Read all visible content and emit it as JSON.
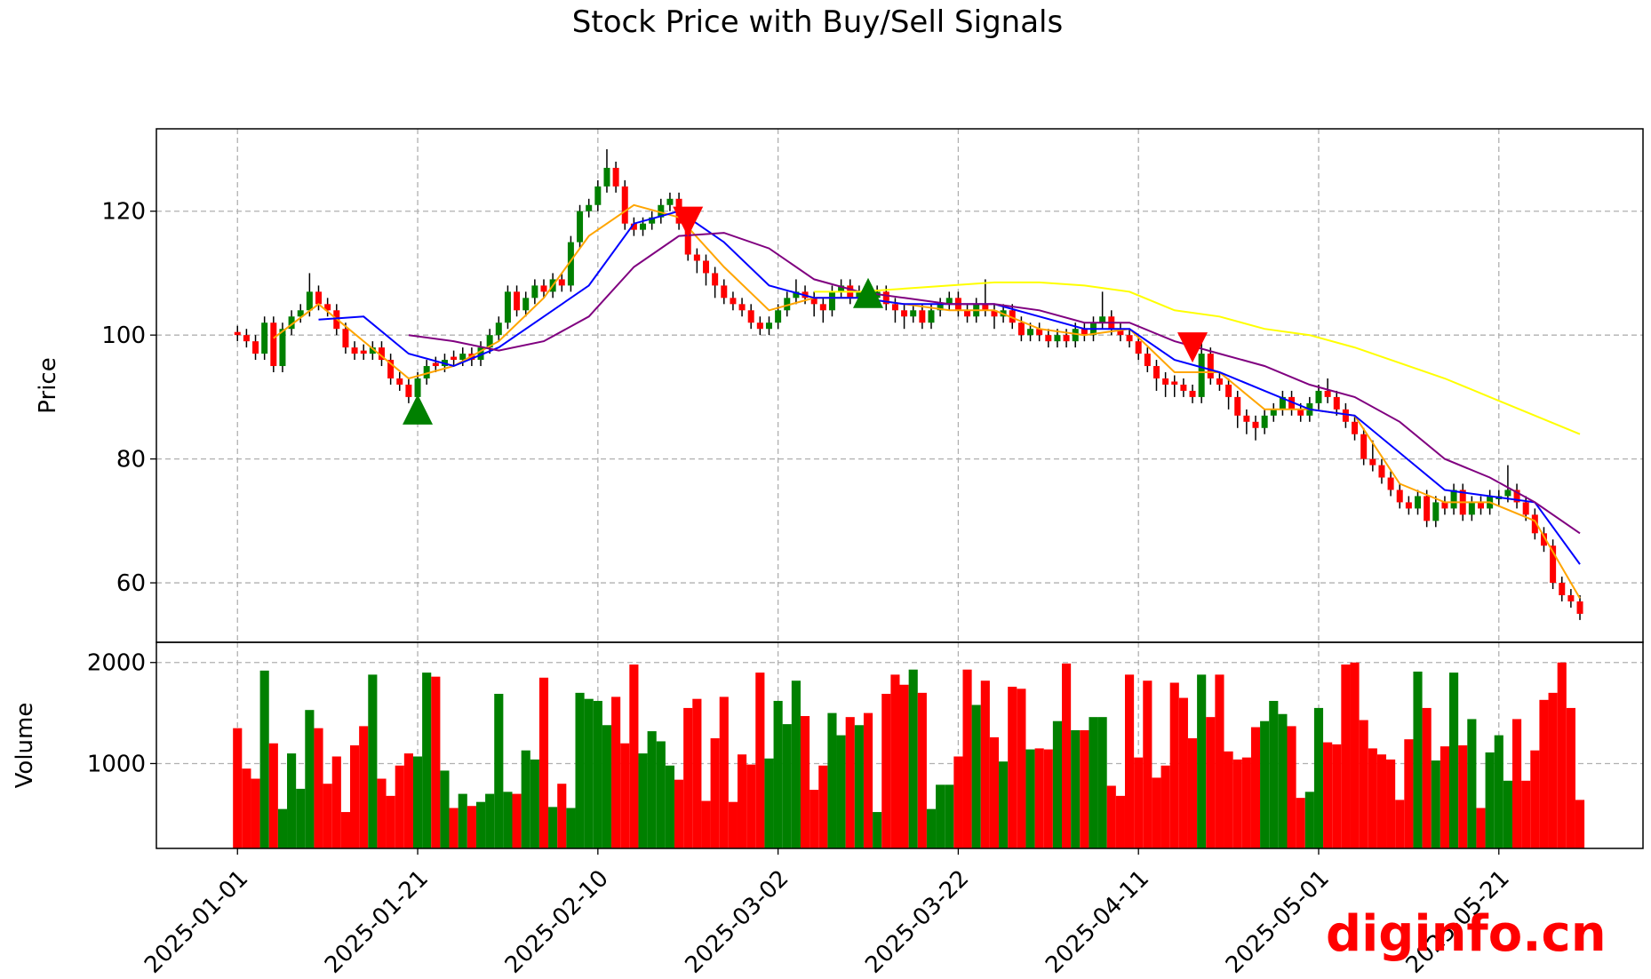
{
  "title": "Stock Price with Buy/Sell Signals",
  "watermark": "diginfo.cn",
  "chart_data": {
    "type": "candlestick",
    "ylabel": "Price",
    "volume_ylabel": "Volume",
    "up_color": "green",
    "down_color": "red",
    "grid": true,
    "xlim": [
      "2024-12-23",
      "2025-06-06"
    ],
    "ylim": [
      50.4,
      133.3
    ],
    "yticks": [
      60,
      80,
      100,
      120
    ],
    "volume_ylim": [
      160,
      2200
    ],
    "volume_yticks": [
      1000,
      2000
    ],
    "xticks": [
      "2025-01-01",
      "2025-01-21",
      "2025-02-10",
      "2025-03-02",
      "2025-03-22",
      "2025-04-11",
      "2025-05-01",
      "2025-05-21"
    ],
    "x": [
      "2025-01-01",
      "2025-01-02",
      "2025-01-03",
      "2025-01-04",
      "2025-01-05",
      "2025-01-06",
      "2025-01-07",
      "2025-01-08",
      "2025-01-09",
      "2025-01-10",
      "2025-01-11",
      "2025-01-12",
      "2025-01-13",
      "2025-01-14",
      "2025-01-15",
      "2025-01-16",
      "2025-01-17",
      "2025-01-18",
      "2025-01-19",
      "2025-01-20",
      "2025-01-21",
      "2025-01-22",
      "2025-01-23",
      "2025-01-24",
      "2025-01-25",
      "2025-01-26",
      "2025-01-27",
      "2025-01-28",
      "2025-01-29",
      "2025-01-30",
      "2025-01-31",
      "2025-02-01",
      "2025-02-02",
      "2025-02-03",
      "2025-02-04",
      "2025-02-05",
      "2025-02-06",
      "2025-02-07",
      "2025-02-08",
      "2025-02-09",
      "2025-02-10",
      "2025-02-11",
      "2025-02-12",
      "2025-02-13",
      "2025-02-14",
      "2025-02-15",
      "2025-02-16",
      "2025-02-17",
      "2025-02-18",
      "2025-02-19",
      "2025-02-20",
      "2025-02-21",
      "2025-02-22",
      "2025-02-23",
      "2025-02-24",
      "2025-02-25",
      "2025-02-26",
      "2025-02-27",
      "2025-02-28",
      "2025-03-01",
      "2025-03-02",
      "2025-03-03",
      "2025-03-04",
      "2025-03-05",
      "2025-03-06",
      "2025-03-07",
      "2025-03-08",
      "2025-03-09",
      "2025-03-10",
      "2025-03-11",
      "2025-03-12",
      "2025-03-13",
      "2025-03-14",
      "2025-03-15",
      "2025-03-16",
      "2025-03-17",
      "2025-03-18",
      "2025-03-19",
      "2025-03-20",
      "2025-03-21",
      "2025-03-22",
      "2025-03-23",
      "2025-03-24",
      "2025-03-25",
      "2025-03-26",
      "2025-03-27",
      "2025-03-28",
      "2025-03-29",
      "2025-03-30",
      "2025-03-31",
      "2025-04-01",
      "2025-04-02",
      "2025-04-03",
      "2025-04-04",
      "2025-04-05",
      "2025-04-06",
      "2025-04-07",
      "2025-04-08",
      "2025-04-09",
      "2025-04-10",
      "2025-04-11",
      "2025-04-12",
      "2025-04-13",
      "2025-04-14",
      "2025-04-15",
      "2025-04-16",
      "2025-04-17",
      "2025-04-18",
      "2025-04-19",
      "2025-04-20",
      "2025-04-21",
      "2025-04-22",
      "2025-04-23",
      "2025-04-24",
      "2025-04-25",
      "2025-04-26",
      "2025-04-27",
      "2025-04-28",
      "2025-04-29",
      "2025-04-30",
      "2025-05-01",
      "2025-05-02",
      "2025-05-03",
      "2025-05-04",
      "2025-05-05",
      "2025-05-06",
      "2025-05-07",
      "2025-05-08",
      "2025-05-09",
      "2025-05-10",
      "2025-05-11",
      "2025-05-12",
      "2025-05-13",
      "2025-05-14",
      "2025-05-15",
      "2025-05-16",
      "2025-05-17",
      "2025-05-18",
      "2025-05-19",
      "2025-05-20",
      "2025-05-21",
      "2025-05-22",
      "2025-05-23",
      "2025-05-24",
      "2025-05-25",
      "2025-05-26",
      "2025-05-27",
      "2025-05-28",
      "2025-05-29",
      "2025-05-30"
    ],
    "open": [
      100.5,
      100,
      99,
      97,
      102,
      95,
      101,
      103,
      104,
      107,
      105,
      104,
      101,
      98,
      97.5,
      97,
      98,
      96,
      93,
      92,
      90,
      93,
      95.5,
      95,
      96.5,
      96,
      97,
      96,
      98,
      100,
      102,
      107,
      104,
      106,
      108,
      107,
      109,
      108,
      115,
      120,
      121,
      124,
      127,
      124,
      118,
      117,
      118,
      119,
      121,
      122,
      118,
      113,
      112,
      110,
      108,
      106,
      105,
      104,
      102,
      101,
      102,
      104,
      106,
      107,
      106,
      105,
      104,
      107,
      108,
      106,
      107,
      106,
      107,
      105,
      104,
      103,
      104,
      102,
      104,
      105,
      106,
      104,
      103,
      105,
      104,
      103,
      104,
      102,
      100,
      101,
      100,
      99,
      100,
      99,
      101,
      100,
      102,
      103,
      101,
      100,
      99,
      97,
      95,
      93,
      92.5,
      92,
      91,
      90,
      97,
      93,
      92,
      90,
      87,
      86,
      85,
      87,
      88,
      90,
      88,
      87,
      89,
      91,
      90,
      88,
      86,
      84,
      80,
      79,
      77,
      75,
      73,
      72,
      74,
      70,
      73,
      72,
      75,
      71,
      73,
      72,
      73.5,
      74,
      75,
      73,
      71,
      68,
      66,
      60,
      58,
      57
    ],
    "high": [
      101.5,
      101,
      100,
      103,
      103,
      102,
      104,
      105,
      110,
      108,
      106,
      105,
      102,
      99,
      98.5,
      99,
      99,
      97,
      94,
      93,
      94,
      96,
      96.5,
      97,
      97.5,
      98,
      98,
      99,
      101,
      103,
      108,
      108,
      107,
      109,
      109,
      110,
      110,
      116,
      121,
      122,
      125,
      130,
      128,
      125,
      119,
      119,
      120,
      122,
      123,
      123,
      119,
      114,
      113,
      111,
      109,
      107,
      106,
      105,
      103,
      103,
      105,
      107,
      109,
      108,
      107,
      106,
      108,
      109,
      109,
      108,
      108,
      108,
      108,
      106,
      105,
      105,
      105,
      105,
      106,
      107,
      107,
      105,
      106,
      109,
      105,
      105,
      105,
      103,
      102,
      102,
      101,
      101,
      101,
      102,
      102,
      103,
      107,
      104,
      102,
      101,
      100,
      98,
      96,
      94,
      93.5,
      93,
      92,
      99,
      98,
      94,
      93,
      91,
      88,
      87,
      88,
      89,
      91,
      91,
      89,
      90,
      92,
      93,
      91,
      89,
      87,
      85,
      83,
      80,
      78,
      76,
      74,
      75,
      75,
      74,
      74,
      76,
      76,
      74,
      74,
      75,
      75,
      79,
      76,
      74,
      72,
      69,
      67,
      61,
      59,
      58
    ],
    "low": [
      99,
      98,
      96,
      96,
      94,
      94,
      100,
      102,
      103,
      104,
      103,
      100,
      97,
      96,
      96,
      96,
      95,
      92,
      91,
      89,
      89,
      92,
      94,
      94,
      95,
      95,
      95,
      95,
      97,
      99,
      101,
      103,
      103,
      105,
      106,
      106,
      107,
      107,
      114,
      119,
      120,
      123,
      123,
      117,
      116,
      116,
      117,
      118,
      120,
      117,
      112,
      110,
      108,
      106,
      105,
      104,
      103,
      101,
      100,
      100,
      101,
      103,
      105,
      105,
      103,
      102,
      103,
      106,
      105,
      105,
      105,
      105,
      104,
      102,
      101,
      102,
      101,
      101,
      103,
      104,
      103,
      102,
      102,
      103,
      101,
      102,
      101,
      99,
      99,
      99,
      98,
      98,
      98,
      98,
      99,
      99,
      101,
      100,
      99,
      98,
      96,
      94,
      91,
      90,
      90,
      90,
      89,
      89,
      92,
      91,
      88,
      85,
      84,
      83,
      84,
      86,
      87,
      87,
      86,
      86,
      88,
      89,
      87,
      85,
      83,
      79,
      78,
      76,
      74,
      72,
      71,
      71,
      69,
      69,
      71,
      71,
      70,
      70,
      71,
      71,
      72.5,
      73,
      72,
      70,
      67,
      65,
      59,
      57,
      56,
      54
    ],
    "close": [
      100,
      99,
      97,
      102,
      95,
      101,
      103,
      104,
      107,
      105,
      104,
      101,
      98,
      97,
      97,
      98,
      96,
      93,
      92,
      90,
      93,
      95,
      95,
      96,
      96,
      97,
      96,
      98,
      100,
      102,
      107,
      104,
      106,
      108,
      107,
      109,
      108,
      115,
      120,
      121,
      124,
      127,
      124,
      118,
      117,
      118,
      119,
      121,
      122,
      118,
      113,
      112,
      110,
      108,
      106,
      105,
      104,
      102,
      101,
      102,
      104,
      106,
      107,
      106,
      105,
      104,
      107,
      108,
      106,
      107,
      106,
      107,
      105,
      104,
      103,
      104,
      102,
      104,
      105,
      106,
      104,
      103,
      105,
      104,
      103,
      104,
      102,
      100,
      101,
      100,
      99,
      100,
      99,
      101,
      100,
      102,
      103,
      101,
      100,
      99,
      97,
      95,
      93,
      92,
      92,
      91,
      90,
      97,
      93,
      92,
      90,
      87,
      86,
      85,
      87,
      88,
      90,
      88,
      87,
      89,
      91,
      90,
      88,
      86,
      84,
      80,
      79,
      77,
      75,
      73,
      72,
      74,
      70,
      73,
      72,
      75,
      71,
      73,
      72,
      74,
      74,
      75,
      73,
      71,
      68,
      66,
      60,
      58,
      57,
      55
    ],
    "volume": [
      1350,
      950,
      850,
      1920,
      1200,
      550,
      1100,
      750,
      1530,
      1350,
      800,
      1070,
      520,
      1180,
      1370,
      1880,
      850,
      680,
      980,
      1100,
      1070,
      1900,
      1860,
      930,
      560,
      700,
      580,
      620,
      700,
      1690,
      720,
      700,
      1130,
      1040,
      1850,
      570,
      800,
      560,
      1700,
      1640,
      1620,
      1380,
      1660,
      1200,
      1980,
      1100,
      1320,
      1220,
      980,
      840,
      1550,
      1640,
      630,
      1250,
      1660,
      620,
      1090,
      990,
      1900,
      1050,
      1620,
      1390,
      1820,
      1470,
      740,
      980,
      1500,
      1280,
      1460,
      1380,
      1500,
      520,
      1690,
      1880,
      1780,
      1930,
      1700,
      550,
      790,
      790,
      1070,
      1930,
      1580,
      1820,
      1260,
      1020,
      1760,
      1740,
      1140,
      1150,
      1140,
      1420,
      1990,
      1330,
      1330,
      1460,
      1460,
      780,
      680,
      1880,
      1060,
      1820,
      860,
      980,
      1800,
      1650,
      1250,
      1880,
      1460,
      1880,
      1120,
      1040,
      1060,
      1360,
      1420,
      1620,
      1490,
      1370,
      660,
      720,
      1550,
      1210,
      1190,
      1980,
      2000,
      1430,
      1150,
      1090,
      1040,
      640,
      1240,
      1910,
      1550,
      1030,
      1170,
      1900,
      1180,
      1440,
      560,
      1110,
      1280,
      830,
      1440,
      830,
      1130,
      1630,
      1700,
      2000,
      1550,
      640
    ],
    "lines": [
      {
        "color": "orange",
        "x": [
          "2025-01-05",
          "2025-01-10",
          "2025-01-15",
          "2025-01-20",
          "2025-01-25",
          "2025-01-30",
          "2025-02-04",
          "2025-02-09",
          "2025-02-14",
          "2025-02-19",
          "2025-02-24",
          "2025-03-01",
          "2025-03-06",
          "2025-03-11",
          "2025-03-16",
          "2025-03-21",
          "2025-03-26",
          "2025-03-31",
          "2025-04-05",
          "2025-04-10",
          "2025-04-15",
          "2025-04-20",
          "2025-04-25",
          "2025-04-30",
          "2025-05-05",
          "2025-05-10",
          "2025-05-15",
          "2025-05-20",
          "2025-05-25",
          "2025-05-30"
        ],
        "values": [
          99.5,
          105,
          99,
          93,
          95,
          99,
          106,
          116,
          121,
          119,
          111,
          104,
          106,
          106,
          105,
          104,
          104,
          101,
          100,
          101,
          94,
          94,
          88,
          88,
          87,
          76,
          73,
          73,
          70,
          57.5
        ]
      },
      {
        "color": "blue",
        "x": [
          "2025-01-10",
          "2025-01-15",
          "2025-01-20",
          "2025-01-25",
          "2025-01-30",
          "2025-02-04",
          "2025-02-09",
          "2025-02-14",
          "2025-02-19",
          "2025-02-24",
          "2025-03-01",
          "2025-03-06",
          "2025-03-11",
          "2025-03-16",
          "2025-03-21",
          "2025-03-26",
          "2025-03-31",
          "2025-04-05",
          "2025-04-10",
          "2025-04-15",
          "2025-04-20",
          "2025-04-25",
          "2025-04-30",
          "2025-05-05",
          "2025-05-10",
          "2025-05-15",
          "2025-05-20",
          "2025-05-25",
          "2025-05-30"
        ],
        "values": [
          102.5,
          103,
          97,
          95,
          98,
          103,
          108,
          118,
          120,
          115,
          108,
          106,
          106,
          105,
          105,
          105,
          103,
          101,
          101,
          96,
          94,
          91,
          88,
          87,
          81,
          75,
          74,
          73,
          63
        ]
      },
      {
        "color": "purple",
        "x": [
          "2025-01-20",
          "2025-01-25",
          "2025-01-30",
          "2025-02-04",
          "2025-02-09",
          "2025-02-14",
          "2025-02-19",
          "2025-02-24",
          "2025-03-01",
          "2025-03-06",
          "2025-03-11",
          "2025-03-16",
          "2025-03-21",
          "2025-03-26",
          "2025-03-31",
          "2025-04-05",
          "2025-04-10",
          "2025-04-15",
          "2025-04-20",
          "2025-04-25",
          "2025-04-30",
          "2025-05-05",
          "2025-05-10",
          "2025-05-15",
          "2025-05-20",
          "2025-05-25",
          "2025-05-30"
        ],
        "values": [
          100,
          99,
          97.5,
          99,
          103,
          111,
          116,
          116.5,
          114,
          109,
          107,
          106,
          105,
          105,
          104,
          102,
          102,
          99,
          97,
          95,
          92,
          90,
          86,
          80,
          77,
          73,
          68
        ]
      },
      {
        "color": "yellow",
        "x": [
          "2025-03-06",
          "2025-03-11",
          "2025-03-16",
          "2025-03-21",
          "2025-03-26",
          "2025-03-31",
          "2025-04-05",
          "2025-04-10",
          "2025-04-15",
          "2025-04-20",
          "2025-04-25",
          "2025-04-30",
          "2025-05-05",
          "2025-05-10",
          "2025-05-15",
          "2025-05-20",
          "2025-05-25",
          "2025-05-30"
        ],
        "values": [
          107,
          107,
          107.5,
          108,
          108.5,
          108.5,
          108,
          107,
          104,
          103,
          101,
          100,
          98,
          95.5,
          93,
          90,
          87,
          84
        ]
      }
    ],
    "signals": [
      {
        "kind": "buy",
        "color": "green",
        "x": [
          "2025-01-21",
          "2025-03-12"
        ],
        "values": [
          88,
          106.8
        ]
      },
      {
        "kind": "sell",
        "color": "red",
        "x": [
          "2025-02-20",
          "2025-04-17"
        ],
        "values": [
          118.3,
          98
        ]
      }
    ]
  }
}
